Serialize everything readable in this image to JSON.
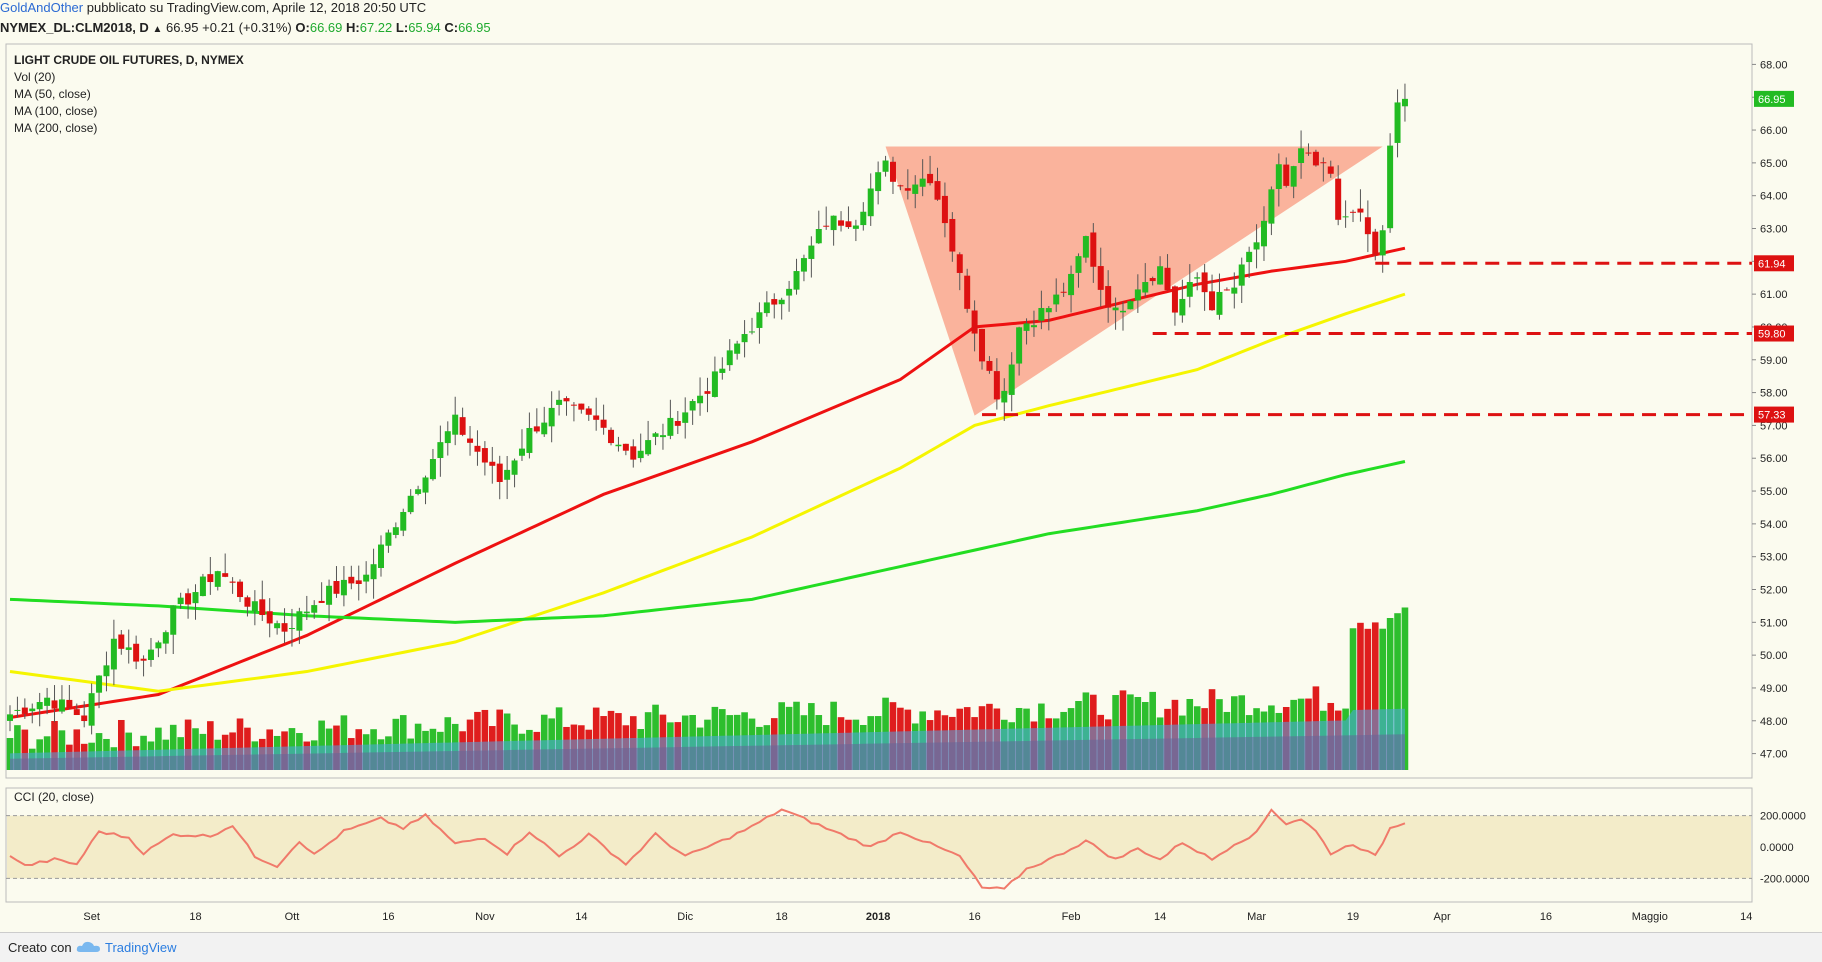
{
  "header": {
    "author": "GoldAndOther",
    "published": "pubblicato su TradingView.com, Aprile 12, 2018 20:50 UTC",
    "symbol": "NYMEX_DL:CLM2018, D",
    "last": "66.95",
    "change": "+0.21 (+0.31%)",
    "o_label": "O:",
    "o_value": "66.69",
    "h_label": "H:",
    "h_value": "67.22",
    "l_label": "L:",
    "l_value": "65.94",
    "c_label": "C:",
    "c_value": "66.95"
  },
  "legend": {
    "title": "LIGHT CRUDE OIL FUTURES, D, NYMEX",
    "lines": [
      "Vol (20)",
      "MA (50, close)",
      "MA (100, close)",
      "MA (200, close)"
    ]
  },
  "cci_label": "CCI (20, close)",
  "footer": {
    "created": "Creato con",
    "brand": "TradingView"
  },
  "colors": {
    "up": "#22bb22",
    "down": "#dd1111",
    "ma50": "#ee1111",
    "ma100": "#f5f500",
    "ma200": "#22dd22",
    "triangle": "#fa9b80",
    "cci": "#f07a6a",
    "vol_ma": "#4aa8e8",
    "vol_base": "#666699"
  },
  "chart_data": {
    "type": "candlestick",
    "title": "LIGHT CRUDE OIL FUTURES, D, NYMEX",
    "price_axis": {
      "range": [
        46.5,
        68.5
      ],
      "ticks": [
        "47.00",
        "48.00",
        "49.00",
        "50.00",
        "51.00",
        "52.00",
        "53.00",
        "54.00",
        "55.00",
        "56.00",
        "57.00",
        "58.00",
        "59.00",
        "60.00",
        "61.00",
        "62.00",
        "63.00",
        "64.00",
        "65.00",
        "66.00",
        "67.00",
        "68.00"
      ]
    },
    "time_axis_labels": [
      "Set",
      "18",
      "Ott",
      "16",
      "Nov",
      "14",
      "Dic",
      "18",
      "2018",
      "16",
      "Feb",
      "14",
      "Mar",
      "19",
      "Apr",
      "16",
      "Maggio",
      "14"
    ],
    "markers": [
      {
        "label": "66.95",
        "value": 66.95,
        "color": "#22bb22"
      },
      {
        "label": "61.94",
        "value": 61.94,
        "color": "#dd1111"
      },
      {
        "label": "59.80",
        "value": 59.8,
        "color": "#dd1111"
      },
      {
        "label": "57.33",
        "value": 57.33,
        "color": "#dd1111"
      }
    ],
    "levels": [
      61.94,
      59.8,
      57.33
    ],
    "triangle": [
      {
        "date_idx": 118,
        "price": 65.5
      },
      {
        "date_idx": 185,
        "price": 65.5
      },
      {
        "date_idx": 130,
        "price": 57.3
      }
    ],
    "close_anchors": [
      {
        "i": 0,
        "c": 48.2
      },
      {
        "i": 5,
        "c": 48.7
      },
      {
        "i": 10,
        "c": 48.1
      },
      {
        "i": 14,
        "c": 50.5
      },
      {
        "i": 18,
        "c": 49.8
      },
      {
        "i": 22,
        "c": 51.3
      },
      {
        "i": 28,
        "c": 52.6
      },
      {
        "i": 33,
        "c": 51.4
      },
      {
        "i": 37,
        "c": 50.8
      },
      {
        "i": 42,
        "c": 51.8
      },
      {
        "i": 48,
        "c": 52.4
      },
      {
        "i": 53,
        "c": 54.5
      },
      {
        "i": 58,
        "c": 56.4
      },
      {
        "i": 60,
        "c": 57.1
      },
      {
        "i": 66,
        "c": 55.3
      },
      {
        "i": 70,
        "c": 56.8
      },
      {
        "i": 74,
        "c": 57.6
      },
      {
        "i": 79,
        "c": 57.1
      },
      {
        "i": 84,
        "c": 56.1
      },
      {
        "i": 89,
        "c": 57.0
      },
      {
        "i": 95,
        "c": 58.4
      },
      {
        "i": 99,
        "c": 59.8
      },
      {
        "i": 103,
        "c": 60.8
      },
      {
        "i": 106,
        "c": 61.6
      },
      {
        "i": 110,
        "c": 63.2
      },
      {
        "i": 114,
        "c": 63.3
      },
      {
        "i": 116,
        "c": 64.2
      },
      {
        "i": 118,
        "c": 64.9
      },
      {
        "i": 120,
        "c": 64.3
      },
      {
        "i": 124,
        "c": 64.6
      },
      {
        "i": 126,
        "c": 63.3
      },
      {
        "i": 128,
        "c": 61.5
      },
      {
        "i": 131,
        "c": 59.2
      },
      {
        "i": 133,
        "c": 58.0
      },
      {
        "i": 134,
        "c": 58.1
      },
      {
        "i": 136,
        "c": 60.0
      },
      {
        "i": 140,
        "c": 60.6
      },
      {
        "i": 143,
        "c": 61.4
      },
      {
        "i": 145,
        "c": 62.7
      },
      {
        "i": 147,
        "c": 61.2
      },
      {
        "i": 149,
        "c": 60.4
      },
      {
        "i": 152,
        "c": 61.3
      },
      {
        "i": 155,
        "c": 61.8
      },
      {
        "i": 157,
        "c": 60.5
      },
      {
        "i": 160,
        "c": 61.5
      },
      {
        "i": 162,
        "c": 60.7
      },
      {
        "i": 165,
        "c": 61.2
      },
      {
        "i": 167,
        "c": 62.2
      },
      {
        "i": 169,
        "c": 63.0
      },
      {
        "i": 171,
        "c": 65.0
      },
      {
        "i": 172,
        "c": 64.3
      },
      {
        "i": 174,
        "c": 65.3
      },
      {
        "i": 176,
        "c": 64.9
      },
      {
        "i": 178,
        "c": 64.6
      },
      {
        "i": 179,
        "c": 63.1
      },
      {
        "i": 181,
        "c": 63.7
      },
      {
        "i": 183,
        "c": 62.8
      },
      {
        "i": 184,
        "c": 62.1
      },
      {
        "i": 185,
        "c": 63.0
      },
      {
        "i": 186,
        "c": 65.4
      },
      {
        "i": 187,
        "c": 66.7
      },
      {
        "i": 188,
        "c": 66.95
      }
    ],
    "ma50": [
      {
        "i": 0,
        "v": 48.1
      },
      {
        "i": 20,
        "v": 48.8
      },
      {
        "i": 40,
        "v": 50.6
      },
      {
        "i": 60,
        "v": 52.8
      },
      {
        "i": 80,
        "v": 54.9
      },
      {
        "i": 100,
        "v": 56.5
      },
      {
        "i": 120,
        "v": 58.4
      },
      {
        "i": 130,
        "v": 60.0
      },
      {
        "i": 140,
        "v": 60.2
      },
      {
        "i": 160,
        "v": 61.3
      },
      {
        "i": 170,
        "v": 61.7
      },
      {
        "i": 180,
        "v": 62.0
      },
      {
        "i": 188,
        "v": 62.4
      }
    ],
    "ma100": [
      {
        "i": 0,
        "v": 49.5
      },
      {
        "i": 20,
        "v": 48.9
      },
      {
        "i": 40,
        "v": 49.5
      },
      {
        "i": 60,
        "v": 50.4
      },
      {
        "i": 80,
        "v": 51.9
      },
      {
        "i": 100,
        "v": 53.6
      },
      {
        "i": 120,
        "v": 55.7
      },
      {
        "i": 130,
        "v": 57.0
      },
      {
        "i": 140,
        "v": 57.6
      },
      {
        "i": 160,
        "v": 58.7
      },
      {
        "i": 170,
        "v": 59.6
      },
      {
        "i": 180,
        "v": 60.4
      },
      {
        "i": 188,
        "v": 61.0
      }
    ],
    "ma200": [
      {
        "i": 0,
        "v": 51.7
      },
      {
        "i": 20,
        "v": 51.5
      },
      {
        "i": 40,
        "v": 51.2
      },
      {
        "i": 60,
        "v": 51.0
      },
      {
        "i": 80,
        "v": 51.2
      },
      {
        "i": 100,
        "v": 51.7
      },
      {
        "i": 120,
        "v": 52.7
      },
      {
        "i": 130,
        "v": 53.2
      },
      {
        "i": 140,
        "v": 53.7
      },
      {
        "i": 160,
        "v": 54.4
      },
      {
        "i": 170,
        "v": 54.9
      },
      {
        "i": 180,
        "v": 55.5
      },
      {
        "i": 188,
        "v": 55.9
      }
    ],
    "volume_panel": {
      "label": "Vol (20)"
    },
    "cci": {
      "label": "CCI (20, close)",
      "ticks": [
        "200.0000",
        "0.0000",
        "-200.0000"
      ],
      "range": [
        -300,
        300
      ],
      "anchors": [
        {
          "i": 0,
          "v": -50
        },
        {
          "i": 2,
          "v": -120
        },
        {
          "i": 6,
          "v": -80
        },
        {
          "i": 9,
          "v": -110
        },
        {
          "i": 12,
          "v": 100
        },
        {
          "i": 16,
          "v": 60
        },
        {
          "i": 18,
          "v": -40
        },
        {
          "i": 22,
          "v": 80
        },
        {
          "i": 27,
          "v": 70
        },
        {
          "i": 30,
          "v": 140
        },
        {
          "i": 33,
          "v": -60
        },
        {
          "i": 36,
          "v": -120
        },
        {
          "i": 39,
          "v": 40
        },
        {
          "i": 41,
          "v": -50
        },
        {
          "i": 45,
          "v": 100
        },
        {
          "i": 50,
          "v": 180
        },
        {
          "i": 53,
          "v": 120
        },
        {
          "i": 56,
          "v": 200
        },
        {
          "i": 60,
          "v": 20
        },
        {
          "i": 64,
          "v": 60
        },
        {
          "i": 67,
          "v": -40
        },
        {
          "i": 70,
          "v": 100
        },
        {
          "i": 74,
          "v": -60
        },
        {
          "i": 78,
          "v": 80
        },
        {
          "i": 83,
          "v": -110
        },
        {
          "i": 87,
          "v": 80
        },
        {
          "i": 91,
          "v": -60
        },
        {
          "i": 96,
          "v": 40
        },
        {
          "i": 100,
          "v": 130
        },
        {
          "i": 104,
          "v": 240
        },
        {
          "i": 108,
          "v": 160
        },
        {
          "i": 112,
          "v": 80
        },
        {
          "i": 116,
          "v": 0
        },
        {
          "i": 120,
          "v": 100
        },
        {
          "i": 124,
          "v": 20
        },
        {
          "i": 128,
          "v": -60
        },
        {
          "i": 131,
          "v": -260
        },
        {
          "i": 134,
          "v": -270
        },
        {
          "i": 137,
          "v": -140
        },
        {
          "i": 141,
          "v": -60
        },
        {
          "i": 145,
          "v": 40
        },
        {
          "i": 149,
          "v": -80
        },
        {
          "i": 152,
          "v": -10
        },
        {
          "i": 155,
          "v": -80
        },
        {
          "i": 158,
          "v": 30
        },
        {
          "i": 162,
          "v": -80
        },
        {
          "i": 165,
          "v": 20
        },
        {
          "i": 168,
          "v": 90
        },
        {
          "i": 170,
          "v": 240
        },
        {
          "i": 172,
          "v": 150
        },
        {
          "i": 174,
          "v": 180
        },
        {
          "i": 176,
          "v": 100
        },
        {
          "i": 178,
          "v": -40
        },
        {
          "i": 181,
          "v": 20
        },
        {
          "i": 184,
          "v": -60
        },
        {
          "i": 186,
          "v": 120
        },
        {
          "i": 188,
          "v": 160
        }
      ]
    }
  }
}
